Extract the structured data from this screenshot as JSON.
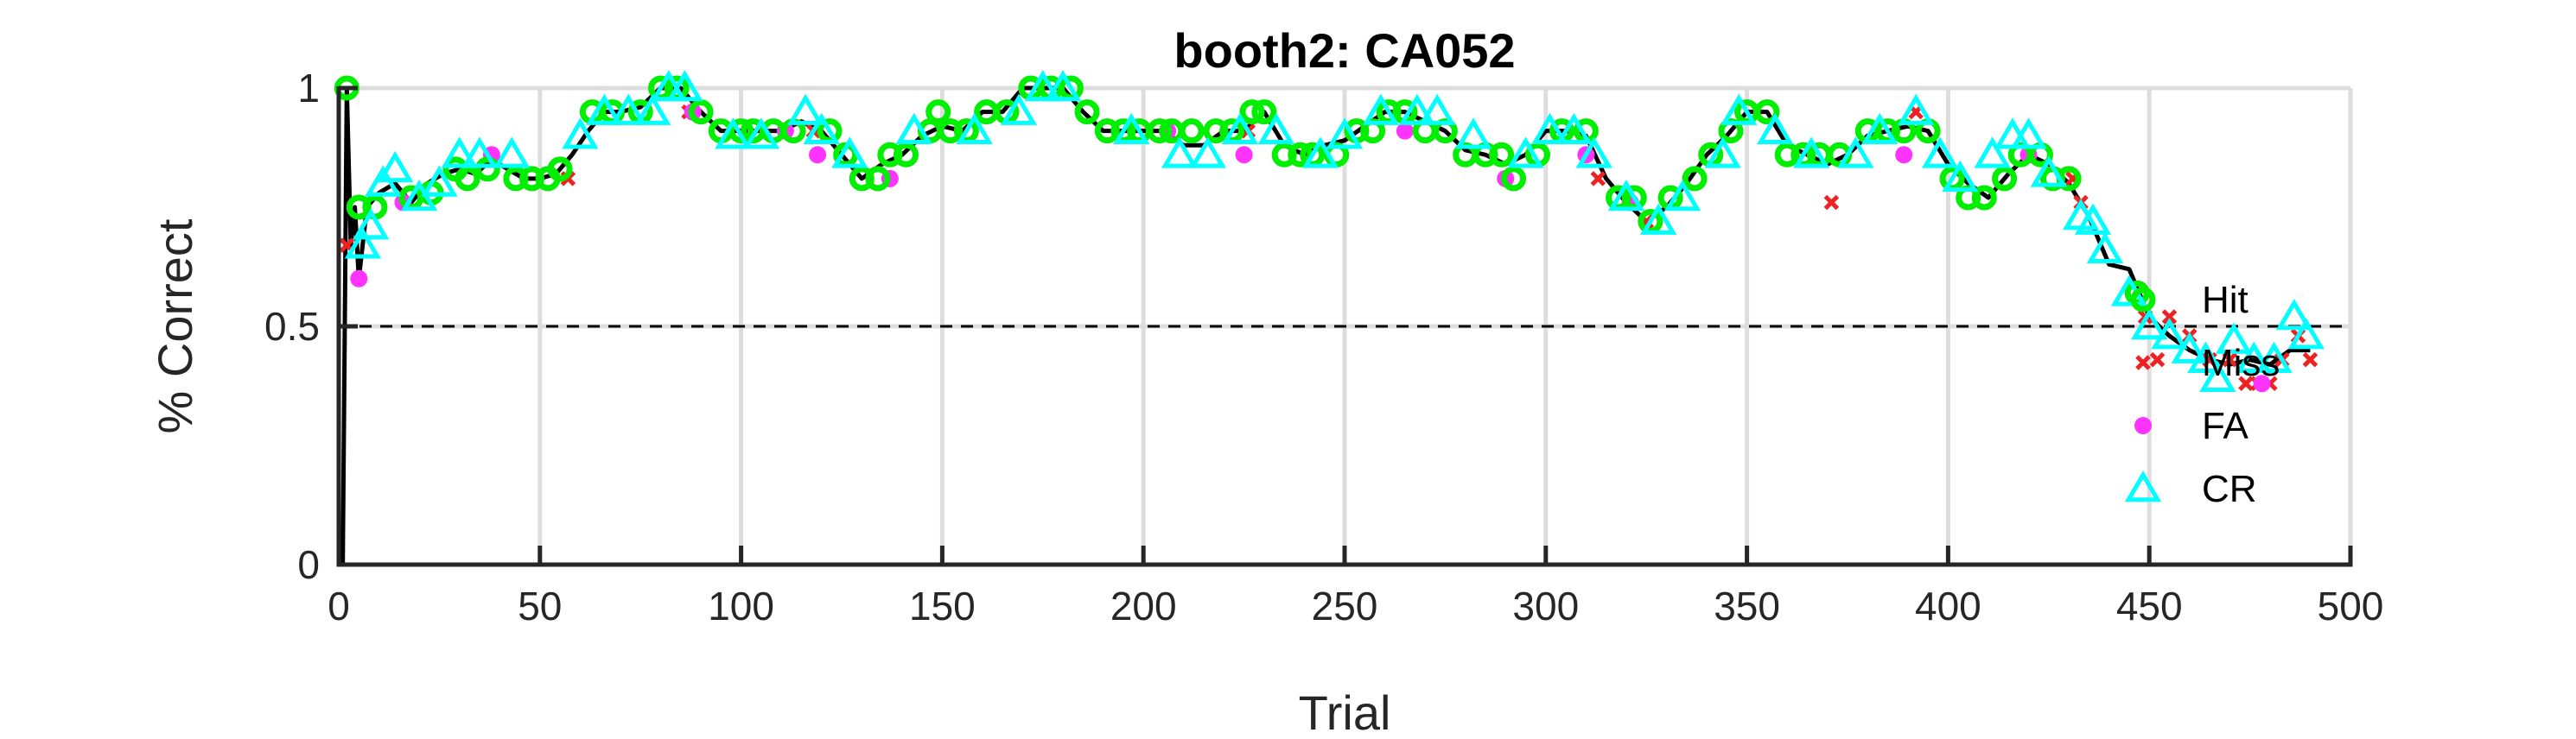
{
  "chart_data": {
    "type": "scatter",
    "title": "booth2: CA052",
    "xlabel": "Trial",
    "ylabel": "% Correct",
    "xlim": [
      0,
      500
    ],
    "ylim": [
      0,
      1
    ],
    "xticks": [
      0,
      50,
      100,
      150,
      200,
      250,
      300,
      350,
      400,
      450,
      500
    ],
    "xtick_labels": [
      "0",
      "50",
      "100",
      "150",
      "200",
      "250",
      "300",
      "350",
      "400",
      "450",
      "500"
    ],
    "yticks": [
      0,
      0.5,
      1
    ],
    "ytick_labels": [
      "0",
      "0.5",
      "1"
    ],
    "grid": true,
    "reference_line": {
      "y": 0.5,
      "style": "dashed"
    },
    "legend_position": "right",
    "colors": {
      "line": "#000000",
      "hit": "#00ee00",
      "miss": "#ee2222",
      "fa": "#ff33ff",
      "cr": "#00ffff",
      "grid": "#dddddd",
      "axis": "#262626"
    },
    "series": [
      {
        "name": "Hit",
        "marker": "circle",
        "color": "#00ee00",
        "x": [
          2,
          5,
          9,
          18,
          23,
          29,
          32,
          37,
          44,
          48,
          52,
          55,
          63,
          68,
          75,
          80,
          84,
          90,
          95,
          100,
          103,
          108,
          113,
          122,
          126,
          130,
          134,
          137,
          141,
          147,
          149,
          152,
          156,
          161,
          166,
          172,
          177,
          182,
          186,
          191,
          195,
          199,
          204,
          207,
          212,
          218,
          222,
          227,
          230,
          235,
          239,
          242,
          248,
          253,
          257,
          261,
          265,
          270,
          275,
          280,
          285,
          289,
          292,
          298,
          304,
          310,
          318,
          322,
          326,
          331,
          337,
          341,
          346,
          350,
          355,
          360,
          364,
          368,
          373,
          380,
          385,
          389,
          395,
          401,
          405,
          409,
          414,
          418,
          423,
          426,
          430,
          447
        ],
        "y": [
          1,
          0.75,
          0.75,
          0.77,
          0.78,
          0.83,
          0.81,
          0.83,
          0.81,
          0.81,
          0.81,
          0.83,
          0.95,
          0.95,
          0.95,
          1,
          1,
          0.95,
          0.91,
          0.91,
          0.91,
          0.91,
          0.91,
          0.91,
          0.86,
          0.81,
          0.81,
          0.86,
          0.86,
          0.91,
          0.95,
          0.91,
          0.91,
          0.95,
          0.95,
          1,
          1,
          1,
          0.95,
          0.91,
          0.91,
          0.91,
          0.91,
          0.91,
          0.91,
          0.91,
          0.91,
          0.95,
          0.95,
          0.86,
          0.86,
          0.86,
          0.86,
          0.91,
          0.91,
          0.95,
          0.95,
          0.91,
          0.91,
          0.86,
          0.86,
          0.86,
          0.81,
          0.86,
          0.91,
          0.91,
          0.77,
          0.77,
          0.72,
          0.77,
          0.81,
          0.86,
          0.91,
          0.95,
          0.95,
          0.86,
          0.86,
          0.86,
          0.86,
          0.91,
          0.91,
          0.91,
          0.91,
          0.81,
          0.77,
          0.77,
          0.81,
          0.86,
          0.86,
          0.81,
          0.81,
          0.57
        ]
      },
      {
        "name": "Miss",
        "marker": "x",
        "color": "#ee2222",
        "x": [
          2,
          57,
          87,
          118,
          226,
          313,
          325,
          371,
          392,
          431,
          433,
          449,
          452,
          455,
          460,
          465,
          470,
          474,
          477,
          480,
          483,
          487,
          490
        ],
        "y": [
          0.67,
          0.81,
          0.95,
          0.91,
          0.91,
          0.81,
          0.72,
          0.76,
          0.95,
          0.81,
          0.76,
          0.52,
          0.43,
          0.52,
          0.48,
          0.43,
          0.43,
          0.38,
          0.38,
          0.38,
          0.43,
          0.48,
          0.43
        ]
      },
      {
        "name": "FA",
        "marker": "dot",
        "color": "#ff33ff",
        "x": [
          5,
          16,
          38,
          88,
          111,
          119,
          137,
          206,
          225,
          265,
          290,
          310,
          321,
          389,
          420,
          478
        ],
        "y": [
          0.6,
          0.76,
          0.86,
          0.95,
          0.91,
          0.86,
          0.81,
          0.91,
          0.86,
          0.91,
          0.81,
          0.86,
          0.76,
          0.86,
          0.86,
          0.38
        ]
      },
      {
        "name": "CR",
        "marker": "triangle",
        "color": "#00ffff",
        "x": [
          6,
          8,
          11,
          14,
          20,
          25,
          30,
          35,
          43,
          60,
          66,
          72,
          78,
          82,
          86,
          98,
          105,
          116,
          120,
          127,
          143,
          158,
          169,
          175,
          180,
          197,
          209,
          216,
          224,
          233,
          244,
          250,
          259,
          268,
          273,
          282,
          295,
          301,
          307,
          312,
          320,
          328,
          334,
          344,
          348,
          357,
          366,
          377,
          383,
          392,
          398,
          403,
          411,
          416,
          420,
          425,
          433,
          436,
          439,
          445,
          450,
          455,
          460,
          464,
          467,
          471,
          476,
          481,
          486,
          489
        ],
        "y": [
          0.67,
          0.71,
          0.8,
          0.83,
          0.77,
          0.8,
          0.86,
          0.86,
          0.86,
          0.9,
          0.95,
          0.95,
          0.95,
          1,
          1,
          0.9,
          0.9,
          0.95,
          0.91,
          0.86,
          0.91,
          0.91,
          0.95,
          1,
          1,
          0.91,
          0.86,
          0.86,
          0.91,
          0.91,
          0.86,
          0.9,
          0.95,
          0.95,
          0.95,
          0.9,
          0.86,
          0.91,
          0.91,
          0.86,
          0.77,
          0.72,
          0.77,
          0.86,
          0.95,
          0.91,
          0.86,
          0.86,
          0.91,
          0.95,
          0.86,
          0.81,
          0.86,
          0.9,
          0.9,
          0.82,
          0.73,
          0.72,
          0.66,
          0.57,
          0.5,
          0.48,
          0.45,
          0.43,
          0.39,
          0.47,
          0.43,
          0.43,
          0.52,
          0.48
        ]
      }
    ],
    "running_line": {
      "x": [
        1,
        2,
        3,
        4,
        5,
        7,
        10,
        14,
        18,
        22,
        26,
        30,
        34,
        38,
        42,
        46,
        50,
        54,
        58,
        62,
        66,
        70,
        75,
        80,
        85,
        90,
        95,
        100,
        105,
        110,
        115,
        120,
        125,
        130,
        135,
        140,
        145,
        150,
        155,
        160,
        165,
        170,
        175,
        180,
        185,
        190,
        195,
        200,
        205,
        210,
        215,
        220,
        225,
        230,
        235,
        240,
        245,
        250,
        255,
        260,
        265,
        270,
        275,
        280,
        285,
        290,
        295,
        300,
        305,
        310,
        315,
        320,
        325,
        330,
        335,
        340,
        345,
        350,
        355,
        360,
        365,
        370,
        375,
        380,
        385,
        390,
        395,
        400,
        405,
        410,
        415,
        420,
        425,
        430,
        435,
        440,
        445,
        450,
        455,
        460,
        465,
        470,
        475,
        480,
        485,
        490
      ],
      "y": [
        0,
        1,
        0.67,
        0.75,
        0.6,
        0.75,
        0.78,
        0.8,
        0.76,
        0.8,
        0.82,
        0.83,
        0.82,
        0.85,
        0.83,
        0.81,
        0.81,
        0.82,
        0.86,
        0.91,
        0.95,
        0.95,
        0.96,
        1,
        1,
        0.95,
        0.91,
        0.91,
        0.91,
        0.91,
        0.93,
        0.91,
        0.86,
        0.81,
        0.84,
        0.86,
        0.9,
        0.92,
        0.91,
        0.95,
        0.95,
        1,
        1,
        1,
        0.95,
        0.91,
        0.91,
        0.91,
        0.91,
        0.88,
        0.88,
        0.91,
        0.91,
        0.95,
        0.88,
        0.86,
        0.88,
        0.89,
        0.92,
        0.95,
        0.95,
        0.93,
        0.91,
        0.87,
        0.86,
        0.84,
        0.86,
        0.91,
        0.91,
        0.9,
        0.81,
        0.76,
        0.72,
        0.75,
        0.8,
        0.86,
        0.9,
        0.95,
        0.95,
        0.88,
        0.86,
        0.84,
        0.86,
        0.9,
        0.91,
        0.92,
        0.91,
        0.84,
        0.8,
        0.77,
        0.82,
        0.86,
        0.84,
        0.8,
        0.73,
        0.63,
        0.62,
        0.52,
        0.48,
        0.45,
        0.43,
        0.42,
        0.43,
        0.42,
        0.45,
        0.45
      ]
    }
  }
}
